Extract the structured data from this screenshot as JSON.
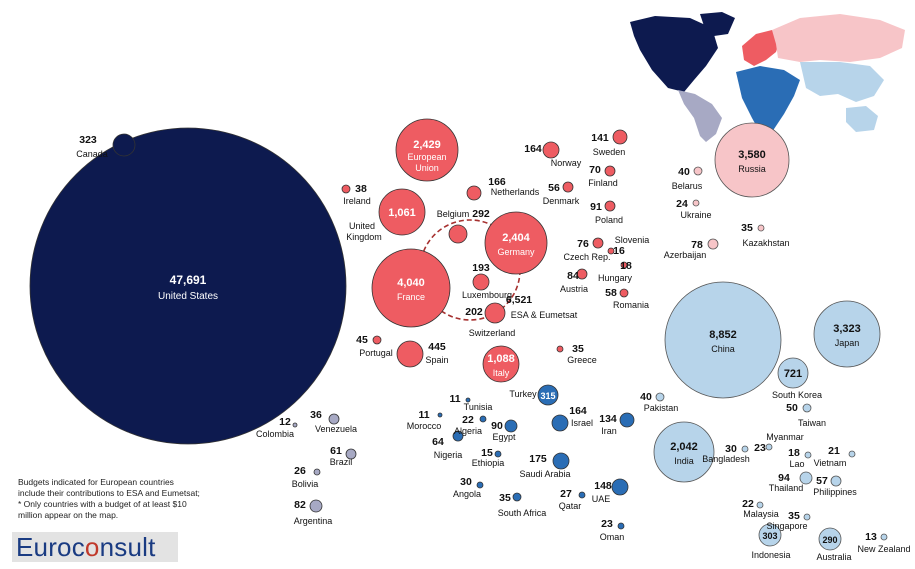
{
  "colors": {
    "north_america": "#0d1a4f",
    "western_europe": "#ee5c62",
    "eastern_europe": "#f7c5c8",
    "middle_east_africa": "#2a6db5",
    "asia": "#b7d4ea",
    "latin_america": "#a7a9c4"
  },
  "note_lines": [
    "Budgets indicated for European countries",
    "include their contributions to ESA and Eumetsat;",
    "* Only countries with a budget of at least  $10",
    "million appear on the map."
  ],
  "logo": {
    "pre": "Euroc",
    "o": "o",
    "post": "nsult"
  },
  "chart_data": {
    "type": "bubble",
    "unit": "",
    "countries": [
      {
        "name": "United States",
        "value": "47,691",
        "region": "north_america"
      },
      {
        "name": "Canada",
        "value": "323",
        "region": "north_america"
      },
      {
        "name": "European Union",
        "value": "2,429",
        "region": "western_europe"
      },
      {
        "name": "France",
        "value": "4,040",
        "region": "western_europe"
      },
      {
        "name": "Germany",
        "value": "2,404",
        "region": "western_europe"
      },
      {
        "name": "United Kingdom",
        "value": "1,061",
        "region": "western_europe"
      },
      {
        "name": "Italy",
        "value": "1,088",
        "region": "western_europe"
      },
      {
        "name": "Spain",
        "value": "445",
        "region": "western_europe"
      },
      {
        "name": "Belgium",
        "value": "292",
        "region": "western_europe"
      },
      {
        "name": "Luxembourg",
        "value": "193",
        "region": "western_europe"
      },
      {
        "name": "Switzerland",
        "value": "202",
        "region": "western_europe"
      },
      {
        "name": "Netherlands",
        "value": "166",
        "region": "western_europe"
      },
      {
        "name": "Norway",
        "value": "164",
        "region": "western_europe"
      },
      {
        "name": "Sweden",
        "value": "141",
        "region": "western_europe"
      },
      {
        "name": "Denmark",
        "value": "56",
        "region": "western_europe"
      },
      {
        "name": "Finland",
        "value": "70",
        "region": "western_europe"
      },
      {
        "name": "Ireland",
        "value": "38",
        "region": "western_europe"
      },
      {
        "name": "Portugal",
        "value": "45",
        "region": "western_europe"
      },
      {
        "name": "Austria",
        "value": "84",
        "region": "western_europe"
      },
      {
        "name": "Poland",
        "value": "91",
        "region": "western_europe"
      },
      {
        "name": "Czech Rep.",
        "value": "76",
        "region": "western_europe"
      },
      {
        "name": "Slovenia",
        "value": "16",
        "region": "western_europe"
      },
      {
        "name": "Hungary",
        "value": "18",
        "region": "western_europe"
      },
      {
        "name": "Romania",
        "value": "58",
        "region": "western_europe"
      },
      {
        "name": "Greece",
        "value": "35",
        "region": "western_europe"
      },
      {
        "name": "ESA & Eumetsat",
        "value": "6,521",
        "region": "western_europe"
      },
      {
        "name": "Russia",
        "value": "3,580",
        "region": "eastern_europe"
      },
      {
        "name": "Belarus",
        "value": "40",
        "region": "eastern_europe"
      },
      {
        "name": "Ukraine",
        "value": "24",
        "region": "eastern_europe"
      },
      {
        "name": "Azerbaijan",
        "value": "78",
        "region": "eastern_europe"
      },
      {
        "name": "Kazakhstan",
        "value": "35",
        "region": "eastern_europe"
      },
      {
        "name": "China",
        "value": "8,852",
        "region": "asia"
      },
      {
        "name": "Japan",
        "value": "3,323",
        "region": "asia"
      },
      {
        "name": "India",
        "value": "2,042",
        "region": "asia"
      },
      {
        "name": "South Korea",
        "value": "721",
        "region": "asia"
      },
      {
        "name": "Indonesia",
        "value": "303",
        "region": "asia"
      },
      {
        "name": "Australia",
        "value": "290",
        "region": "asia"
      },
      {
        "name": "Thailand",
        "value": "94",
        "region": "asia"
      },
      {
        "name": "Philippines",
        "value": "57",
        "region": "asia"
      },
      {
        "name": "Taiwan",
        "value": "50",
        "region": "asia"
      },
      {
        "name": "Pakistan",
        "value": "40",
        "region": "asia"
      },
      {
        "name": "Bangladesh",
        "value": "30",
        "region": "asia"
      },
      {
        "name": "Myanmar",
        "value": "23",
        "region": "asia"
      },
      {
        "name": "Malaysia",
        "value": "22",
        "region": "asia"
      },
      {
        "name": "Vietnam",
        "value": "21",
        "region": "asia"
      },
      {
        "name": "Lao",
        "value": "18",
        "region": "asia"
      },
      {
        "name": "Singapore",
        "value": "35",
        "region": "asia"
      },
      {
        "name": "New Zealand",
        "value": "13",
        "region": "asia"
      },
      {
        "name": "Turkey",
        "value": "315",
        "region": "middle_east_africa"
      },
      {
        "name": "Saudi Arabia",
        "value": "175",
        "region": "middle_east_africa"
      },
      {
        "name": "Israel",
        "value": "164",
        "region": "middle_east_africa"
      },
      {
        "name": "UAE",
        "value": "148",
        "region": "middle_east_africa"
      },
      {
        "name": "Iran",
        "value": "134",
        "region": "middle_east_africa"
      },
      {
        "name": "Egypt",
        "value": "90",
        "region": "middle_east_africa"
      },
      {
        "name": "Nigeria",
        "value": "64",
        "region": "middle_east_africa"
      },
      {
        "name": "South Africa",
        "value": "35",
        "region": "middle_east_africa"
      },
      {
        "name": "Angola",
        "value": "30",
        "region": "middle_east_africa"
      },
      {
        "name": "Qatar",
        "value": "27",
        "region": "middle_east_africa"
      },
      {
        "name": "Oman",
        "value": "23",
        "region": "middle_east_africa"
      },
      {
        "name": "Algeria",
        "value": "22",
        "region": "middle_east_africa"
      },
      {
        "name": "Ethiopia",
        "value": "15",
        "region": "middle_east_africa"
      },
      {
        "name": "Morocco",
        "value": "11",
        "region": "middle_east_africa"
      },
      {
        "name": "Tunisia",
        "value": "11",
        "region": "middle_east_africa"
      },
      {
        "name": "Argentina",
        "value": "82",
        "region": "latin_america"
      },
      {
        "name": "Brazil",
        "value": "61",
        "region": "latin_america"
      },
      {
        "name": "Venezuela",
        "value": "36",
        "region": "latin_america"
      },
      {
        "name": "Bolivia",
        "value": "26",
        "region": "latin_america"
      },
      {
        "name": "Colombia",
        "value": "12",
        "region": "latin_america"
      }
    ]
  }
}
